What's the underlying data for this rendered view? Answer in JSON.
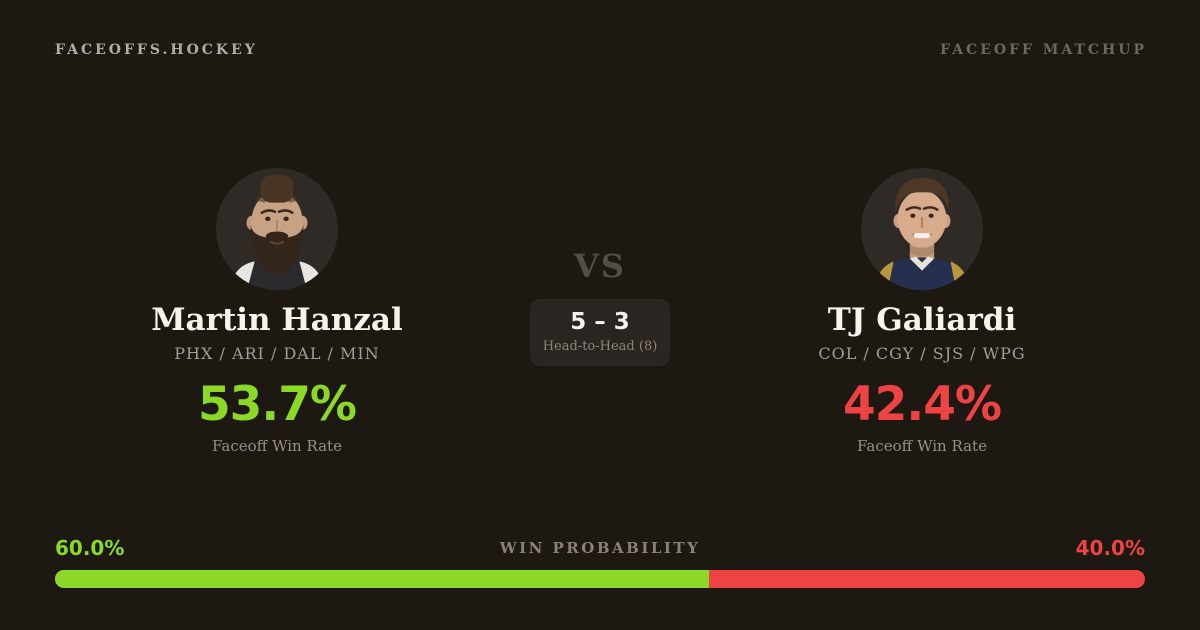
{
  "header": {
    "brand": "FACEOFFS.HOCKEY",
    "label": "FACEOFF MATCHUP"
  },
  "players": {
    "left": {
      "name": "Martin Hanzal",
      "teams": "PHX / ARI / DAL / MIN",
      "win_rate": "53.7%",
      "win_rate_label": "Faceoff Win Rate",
      "color": "#8cd827"
    },
    "right": {
      "name": "TJ Galiardi",
      "teams": "COL / CGY / SJS / WPG",
      "win_rate": "42.4%",
      "win_rate_label": "Faceoff Win Rate",
      "color": "#ee4343"
    }
  },
  "center": {
    "vs": "VS",
    "score": "5 – 3",
    "score_label": "Head-to-Head (8)"
  },
  "probability": {
    "label": "WIN PROBABILITY",
    "left_value": "60.0%",
    "right_value": "40.0%",
    "left_pct": 60.0,
    "right_pct": 40.0,
    "left_color": "#8cd827",
    "right_color": "#ee4343"
  }
}
